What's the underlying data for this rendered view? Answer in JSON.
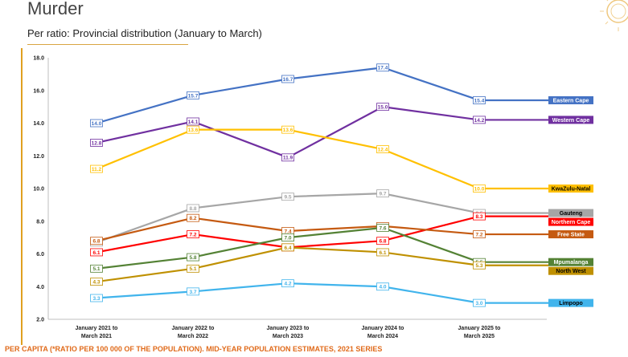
{
  "header": {
    "title": "Murder",
    "subtitle": "Per ratio: Provincial distribution (January to March)"
  },
  "footnote": "PER CAPITA (*RATIO PER 100 000 OF THE POPULATION). MID-YEAR POPULATION ESTIMATES, 2021 SERIES",
  "chart_data": {
    "type": "line",
    "title": "",
    "xlabel": "",
    "ylabel": "",
    "ylim": [
      2.0,
      18.0
    ],
    "yticks": [
      2.0,
      4.0,
      6.0,
      8.0,
      10.0,
      12.0,
      14.0,
      16.0,
      18.0
    ],
    "categories": [
      [
        "January 2021 to",
        "March 2021"
      ],
      [
        "January 2022 to",
        "March 2022"
      ],
      [
        "January 2023 to",
        "March 2023"
      ],
      [
        "January 2024 to",
        "March 2024"
      ],
      [
        "January 2025 to",
        "March 2025"
      ]
    ],
    "grid": false,
    "legend": "right",
    "series": [
      {
        "name": "Eastern Cape",
        "color": "#4472c4",
        "labelColor": "#ffffff",
        "values": [
          14.0,
          15.7,
          16.7,
          17.4,
          15.4
        ]
      },
      {
        "name": "Western Cape",
        "color": "#7030a0",
        "labelColor": "#ffffff",
        "values": [
          12.8,
          14.1,
          11.9,
          15.0,
          14.2
        ]
      },
      {
        "name": "KwaZulu-Natal",
        "color": "#ffc000",
        "labelColor": "#000000",
        "values": [
          11.2,
          13.6,
          13.6,
          12.4,
          10.0
        ]
      },
      {
        "name": "Gauteng",
        "color": "#a6a6a6",
        "labelColor": "#000000",
        "values": [
          6.7,
          8.8,
          9.5,
          9.7,
          8.5
        ]
      },
      {
        "name": "Northern Cape",
        "color": "#ff0000",
        "labelColor": "#ffffff",
        "values": [
          6.1,
          7.2,
          6.4,
          6.8,
          8.3
        ]
      },
      {
        "name": "Free State",
        "color": "#c55a11",
        "labelColor": "#ffffff",
        "values": [
          6.8,
          8.2,
          7.4,
          7.7,
          7.2
        ]
      },
      {
        "name": "Mpumalanga",
        "color": "#548235",
        "labelColor": "#ffffff",
        "values": [
          5.1,
          5.8,
          7.0,
          7.6,
          5.5
        ]
      },
      {
        "name": "North West",
        "color": "#bf9000",
        "labelColor": "#000000",
        "values": [
          4.3,
          5.1,
          6.4,
          6.1,
          5.3
        ]
      },
      {
        "name": "Limpopo",
        "color": "#41b4ec",
        "labelColor": "#000000",
        "values": [
          3.3,
          3.7,
          4.2,
          4.0,
          3.0
        ]
      }
    ]
  }
}
